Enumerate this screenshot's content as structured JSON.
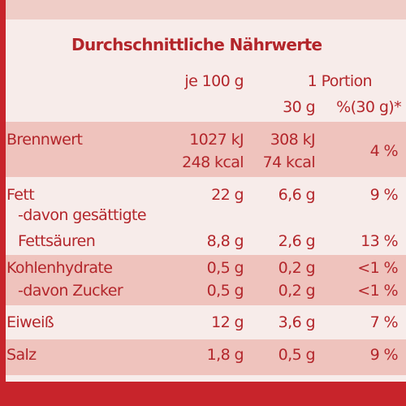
{
  "title": "Durchschnittliche Nährwerte",
  "header": {
    "per100": "je 100 g",
    "portion": "1 Portion",
    "portion_size": "30 g",
    "percent": "%(30 g)*"
  },
  "rows": [
    {
      "label": "Brennwert",
      "per100": [
        "1027 kJ",
        "248 kcal"
      ],
      "portion": [
        "308 kJ",
        "74 kcal"
      ],
      "percent": "4 %"
    },
    {
      "label": "Fett",
      "per100": [
        "22 g"
      ],
      "portion": [
        "6,6 g"
      ],
      "percent": "9 %"
    },
    {
      "label": "-davon gesättigte Fettsäuren",
      "per100": [
        "8,8 g"
      ],
      "portion": [
        "2,6 g"
      ],
      "percent": "13 %"
    },
    {
      "label": "Kohlenhydrate",
      "per100": [
        "0,5 g"
      ],
      "portion": [
        "0,2 g"
      ],
      "percent": "<1 %"
    },
    {
      "label": "-davon Zucker",
      "per100": [
        "0,5 g"
      ],
      "portion": [
        "0,2 g"
      ],
      "percent": "<1 %"
    },
    {
      "label": "Eiweiß",
      "per100": [
        "12 g"
      ],
      "portion": [
        "3,6 g"
      ],
      "percent": "7 %"
    },
    {
      "label": "Salz",
      "per100": [
        "1,8 g"
      ],
      "portion": [
        "0,5 g"
      ],
      "percent": "9 %"
    }
  ]
}
